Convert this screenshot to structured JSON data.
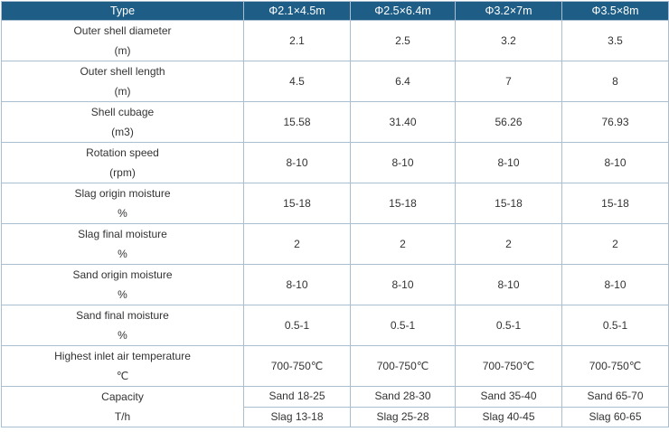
{
  "table": {
    "header": [
      "Type",
      "Φ2.1×4.5m",
      "Φ2.5×6.4m",
      "Φ3.2×7m",
      "Φ3.5×8m"
    ],
    "rows": [
      {
        "label": "Outer shell diameter",
        "unit": "(m)",
        "values": [
          "2.1",
          "2.5",
          "3.2",
          "3.5"
        ]
      },
      {
        "label": "Outer shell length",
        "unit": "(m)",
        "values": [
          "4.5",
          "6.4",
          "7",
          "8"
        ]
      },
      {
        "label": "Shell cubage",
        "unit": "(m3)",
        "values": [
          "15.58",
          "31.40",
          "56.26",
          "76.93"
        ]
      },
      {
        "label": "Rotation speed",
        "unit": "(rpm)",
        "values": [
          "8-10",
          "8-10",
          "8-10",
          "8-10"
        ]
      },
      {
        "label": "Slag origin moisture",
        "unit": "%",
        "values": [
          "15-18",
          "15-18",
          "15-18",
          "15-18"
        ]
      },
      {
        "label": "Slag final moisture",
        "unit": "%",
        "values": [
          "2",
          "2",
          "2",
          "2"
        ]
      },
      {
        "label": "Sand origin moisture",
        "unit": "%",
        "values": [
          "8-10",
          "8-10",
          "8-10",
          "8-10"
        ]
      },
      {
        "label": "Sand final moisture",
        "unit": "%",
        "values": [
          "0.5-1",
          "0.5-1",
          "0.5-1",
          "0.5-1"
        ]
      },
      {
        "label": "Highest inlet air temperature",
        "unit": "℃",
        "values": [
          "700-750℃",
          "700-750℃",
          "700-750℃",
          "700-750℃"
        ]
      }
    ],
    "capacity": {
      "label": "Capacity",
      "unit": "T/h",
      "sand": [
        "Sand 18-25",
        "Sand 28-30",
        "Sand 35-40",
        "Sand 65-70"
      ],
      "slag": [
        "Slag 13-18",
        "Slag 25-28",
        "Slag 40-45",
        "Slag 60-65"
      ]
    }
  }
}
